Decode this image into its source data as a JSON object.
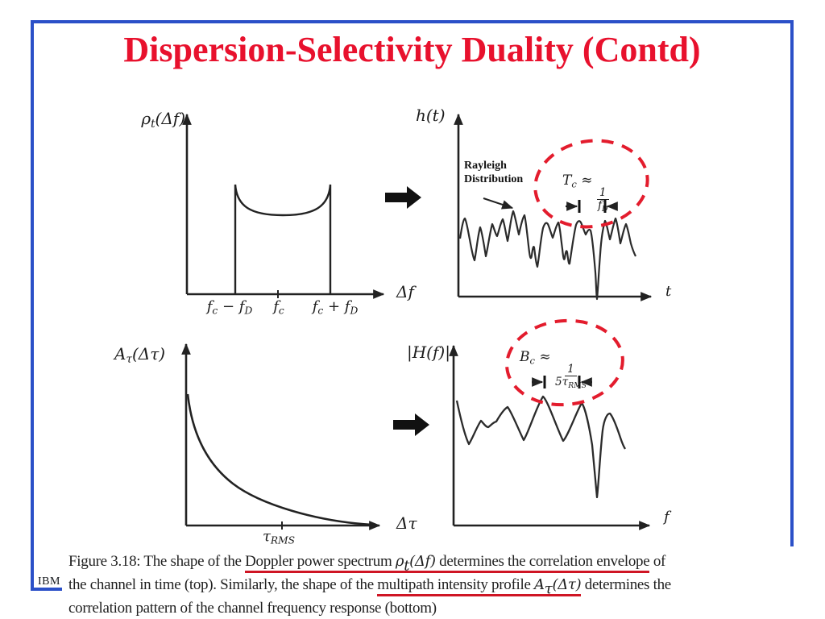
{
  "slide": {
    "title": "Dispersion-Selectivity Duality (Contd)",
    "logo": "IBM",
    "colors": {
      "frame_blue": "#2b50c8",
      "title_red": "#e8112d",
      "annotation_red": "#e31c2d",
      "underline_red": "#cf1524",
      "ink": "#222222"
    }
  },
  "plots": {
    "doppler": {
      "ylabel": [
        {
          "t": "ρ"
        },
        {
          "t": "t",
          "sub": true
        },
        {
          "t": "(Δf)"
        }
      ],
      "xlabel": [
        {
          "t": "Δf"
        }
      ],
      "tick_left": [
        {
          "t": "f"
        },
        {
          "t": "c",
          "sub": true
        },
        {
          "t": " − "
        },
        {
          "t": "f"
        },
        {
          "t": "D",
          "sub": true
        }
      ],
      "tick_mid": [
        {
          "t": "f"
        },
        {
          "t": "c",
          "sub": true
        }
      ],
      "tick_right": [
        {
          "t": "f"
        },
        {
          "t": "c",
          "sub": true
        },
        {
          "t": " + "
        },
        {
          "t": "f"
        },
        {
          "t": "D",
          "sub": true
        }
      ]
    },
    "impulse": {
      "ylabel": [
        {
          "t": "h(t)"
        }
      ],
      "xlabel": [
        {
          "t": "t"
        }
      ],
      "annotation_line1": "Rayleigh",
      "annotation_line2": "Distribution",
      "formula": {
        "lhs": [
          {
            "t": "T"
          },
          {
            "t": "c",
            "sub": true
          },
          {
            "t": " ≈ "
          }
        ],
        "num": "1",
        "den": [
          {
            "t": "f"
          },
          {
            "t": "D",
            "sub": true
          }
        ]
      }
    },
    "delay": {
      "ylabel": [
        {
          "t": "A"
        },
        {
          "t": "τ",
          "sub": true
        },
        {
          "t": "(Δτ)"
        }
      ],
      "xlabel": [
        {
          "t": "Δτ"
        }
      ],
      "tick": [
        {
          "t": "τ"
        },
        {
          "t": "RMS",
          "sub": true
        }
      ]
    },
    "freq": {
      "ylabel": [
        {
          "t": "|H(f)|"
        }
      ],
      "xlabel": [
        {
          "t": "f"
        }
      ],
      "formula": {
        "lhs": [
          {
            "t": "B"
          },
          {
            "t": "c",
            "sub": true
          },
          {
            "t": " ≈ "
          }
        ],
        "num": "1",
        "den": [
          {
            "t": "5τ"
          },
          {
            "t": "RMS",
            "sub": true
          }
        ]
      }
    }
  },
  "caption": {
    "line1": [
      {
        "t": "Figure 3.18:  The shape of the "
      },
      {
        "t": "Doppler power spectrum ",
        "u": true
      },
      {
        "t": "ρ",
        "u": true,
        "it": true
      },
      {
        "t": "t",
        "u": true,
        "it": true,
        "sub": true
      },
      {
        "t": "(Δf)",
        "u": true,
        "it": true
      },
      {
        "t": " determines the correlation envelope",
        "u": true
      },
      {
        "t": " of"
      }
    ],
    "line2": [
      {
        "t": "the channel in time (top).  Similarly, the shape of the "
      },
      {
        "t": "multipath intensity profile ",
        "u": true
      },
      {
        "t": "A",
        "u": true,
        "it": true
      },
      {
        "t": "τ",
        "u": true,
        "it": true,
        "sub": true
      },
      {
        "t": "(Δτ)",
        "u": true,
        "it": true
      },
      {
        "t": " determines the"
      }
    ],
    "line3": [
      {
        "t": "correlation pattern of the channel frequency response (bottom)"
      }
    ]
  }
}
